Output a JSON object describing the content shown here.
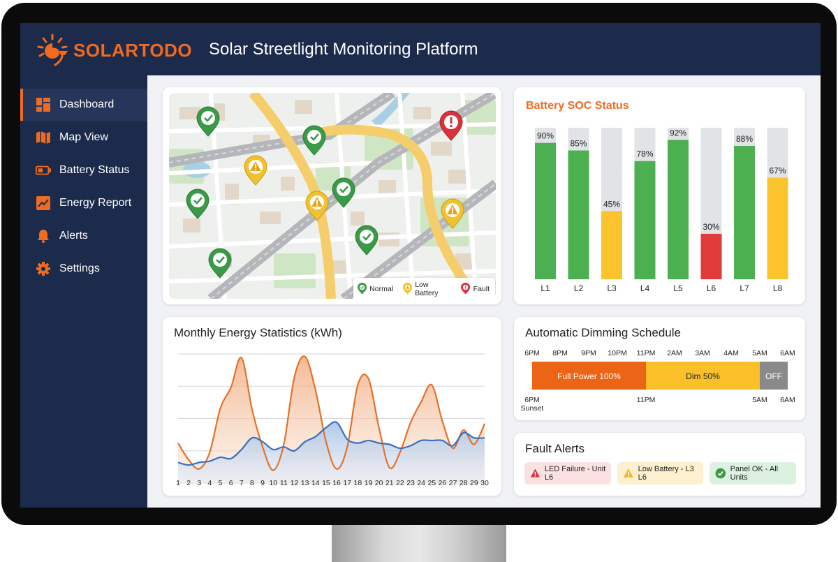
{
  "header": {
    "brand": "SOLARTODO",
    "title": "Solar Streetlight Monitoring Platform"
  },
  "sidebar": {
    "items": [
      {
        "label": "Dashboard",
        "icon": "dashboard-icon",
        "active": true
      },
      {
        "label": "Map View",
        "icon": "map-icon",
        "active": false
      },
      {
        "label": "Battery Status",
        "icon": "battery-icon",
        "active": false
      },
      {
        "label": "Energy Report",
        "icon": "chart-line-icon",
        "active": false
      },
      {
        "label": "Alerts",
        "icon": "bell-icon",
        "active": false
      },
      {
        "label": "Settings",
        "icon": "gear-icon",
        "active": false
      }
    ]
  },
  "map": {
    "legend": {
      "normal": "Normal",
      "low_battery": "Low Battery",
      "fault": "Fault"
    },
    "colors": {
      "normal": "#3a9a48",
      "low_battery": "#f2c12e",
      "fault": "#d8323b"
    }
  },
  "battery": {
    "title": "Battery SOC Status",
    "colors": {
      "high": "#4caf50",
      "medium": "#fbc42d",
      "low": "#e03a3a",
      "track": "#e2e3e7"
    }
  },
  "energy": {
    "title": "Monthly Energy Statistics (kWh)"
  },
  "dimming": {
    "title": "Automatic Dimming Schedule",
    "top_ticks": [
      "6PM",
      "8PM",
      "9PM",
      "10PM",
      "11PM",
      "2AM",
      "3AM",
      "4AM",
      "5AM",
      "6AM"
    ],
    "segments": [
      {
        "label": "Full Power 100%",
        "color": "#ec6416"
      },
      {
        "label": "Dim 50%",
        "color": "#fbbf2a"
      },
      {
        "label": "OFF",
        "color": "#8a8a8a"
      }
    ],
    "bottom": {
      "start_time": "6PM",
      "start_note": "Sunset",
      "t2": "11PM",
      "t3": "5AM",
      "t4": "6AM"
    }
  },
  "faults": {
    "title": "Fault Alerts",
    "items": [
      {
        "label": "LED Failure - Unit L6",
        "icon": "warning-icon"
      },
      {
        "label": "Low Battery - L3 L6",
        "icon": "warning-icon"
      },
      {
        "label": "Panel OK - All Units",
        "icon": "check-icon"
      }
    ]
  },
  "chart_data": [
    {
      "type": "bar",
      "title": "Battery SOC Status",
      "categories": [
        "L1",
        "L2",
        "L3",
        "L4",
        "L5",
        "L6",
        "L7",
        "L8"
      ],
      "values": [
        90,
        85,
        45,
        78,
        92,
        30,
        88,
        67
      ],
      "value_labels": [
        "90%",
        "85%",
        "45%",
        "78%",
        "92%",
        "30%",
        "88%",
        "67%"
      ],
      "ylim": [
        0,
        100
      ],
      "grid": false
    },
    {
      "type": "area",
      "title": "Monthly Energy Statistics (kWh)",
      "x": [
        1,
        2,
        3,
        4,
        5,
        6,
        7,
        8,
        9,
        10,
        11,
        12,
        13,
        14,
        15,
        16,
        17,
        18,
        19,
        20,
        21,
        22,
        23,
        24,
        25,
        26,
        27,
        28,
        29,
        30
      ],
      "ylim": [
        0,
        100
      ],
      "grid": true,
      "series": [
        {
          "color": "#e4712a",
          "values": [
            31,
            18,
            11,
            24,
            58,
            74,
            97,
            57,
            28,
            10,
            30,
            82,
            98,
            72,
            32,
            11,
            28,
            76,
            81,
            43,
            12,
            24,
            47,
            63,
            76,
            48,
            27,
            41,
            30,
            46
          ]
        },
        {
          "color": "#3a6fc0",
          "values": [
            16,
            14,
            16,
            17,
            20,
            19,
            26,
            35,
            32,
            26,
            28,
            25,
            32,
            36,
            43,
            47,
            34,
            31,
            33,
            31,
            30,
            27,
            29,
            33,
            33,
            33,
            29,
            39,
            35,
            35
          ]
        }
      ]
    }
  ]
}
